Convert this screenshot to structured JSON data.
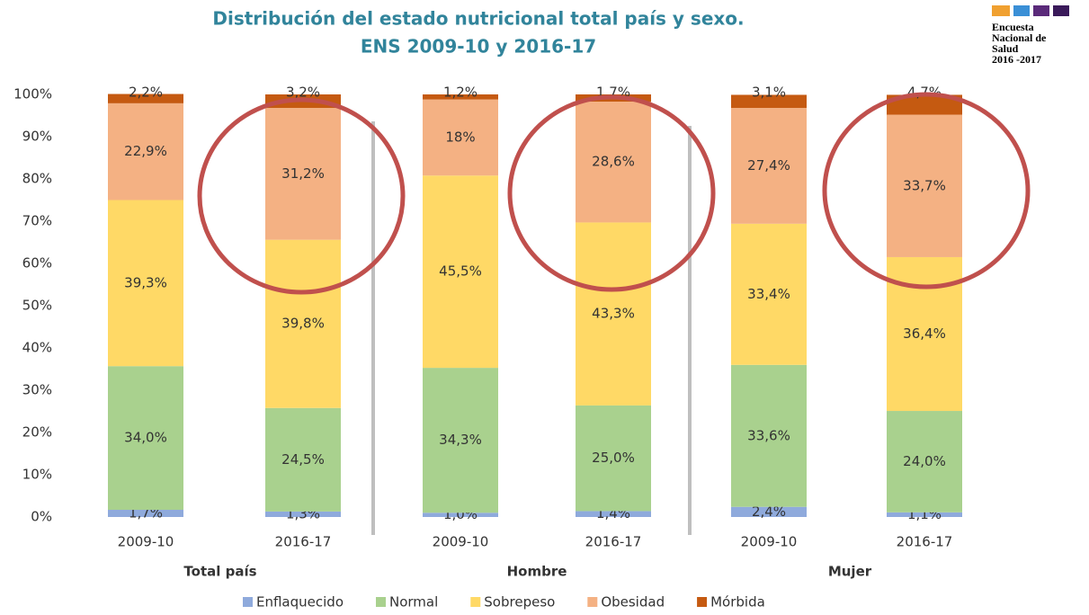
{
  "chart_data": {
    "type": "stacked_bar",
    "title": "Distribución del estado nutricional total país y sexo.",
    "subtitle": "ENS 2009-10 y 2016-17",
    "logo": [
      "Encuesta",
      "Nacional de",
      "Salud",
      "2016 -2017"
    ],
    "categories": [
      "2009-10",
      "2016-17",
      "2009-10",
      "2016-17",
      "2009-10",
      "2016-17"
    ],
    "groups": [
      "Total país",
      "Hombre",
      "Mujer"
    ],
    "series": [
      {
        "name": "Enflaquecido",
        "color": "#8faadc",
        "values": [
          1.7,
          1.3,
          1.0,
          1.4,
          2.4,
          1.1
        ],
        "value_labels": [
          "1,7%",
          "1,3%",
          "1,0%",
          "1,4%",
          "2,4%",
          "1,1%"
        ]
      },
      {
        "name": "Normal",
        "color": "#a9d18e",
        "values": [
          34.0,
          24.5,
          34.3,
          25.0,
          33.6,
          24.0
        ],
        "value_labels": [
          "34,0%",
          "24,5%",
          "34,3%",
          "25,0%",
          "33,6%",
          "24,0%"
        ]
      },
      {
        "name": "Sobrepeso",
        "color": "#ffd966",
        "values": [
          39.3,
          39.8,
          45.5,
          43.3,
          33.4,
          36.4
        ],
        "value_labels": [
          "39,3%",
          "39,8%",
          "45,5%",
          "43,3%",
          "33,4%",
          "36,4%"
        ]
      },
      {
        "name": "Obesidad",
        "color": "#f4b183",
        "values": [
          22.9,
          31.2,
          18,
          28.6,
          27.4,
          33.7
        ],
        "value_labels": [
          "22,9%",
          "31,2%",
          "18%",
          "28,6%",
          "27,4%",
          "33,7%"
        ]
      },
      {
        "name": "Mórbida",
        "color": "#c55a11",
        "values": [
          2.2,
          3.2,
          1.2,
          1.7,
          3.1,
          4.7
        ],
        "value_labels": [
          "2,2%",
          "3,2%",
          "1,2%",
          "1,7%",
          "3,1%",
          "4,7%"
        ]
      }
    ],
    "ylim": [
      0,
      100
    ],
    "yticks": [
      {
        "value": 0,
        "label": "0%"
      },
      {
        "value": 10,
        "label": "10%"
      },
      {
        "value": 20,
        "label": "20%"
      },
      {
        "value": 30,
        "label": "30%"
      },
      {
        "value": 40,
        "label": "40%"
      },
      {
        "value": 50,
        "label": "50%"
      },
      {
        "value": 60,
        "label": "60%"
      },
      {
        "value": 70,
        "label": "70%"
      },
      {
        "value": 80,
        "label": "80%"
      },
      {
        "value": 90,
        "label": "90%"
      },
      {
        "value": 100,
        "label": "100%"
      }
    ],
    "grid": false,
    "legend": "bottom"
  }
}
